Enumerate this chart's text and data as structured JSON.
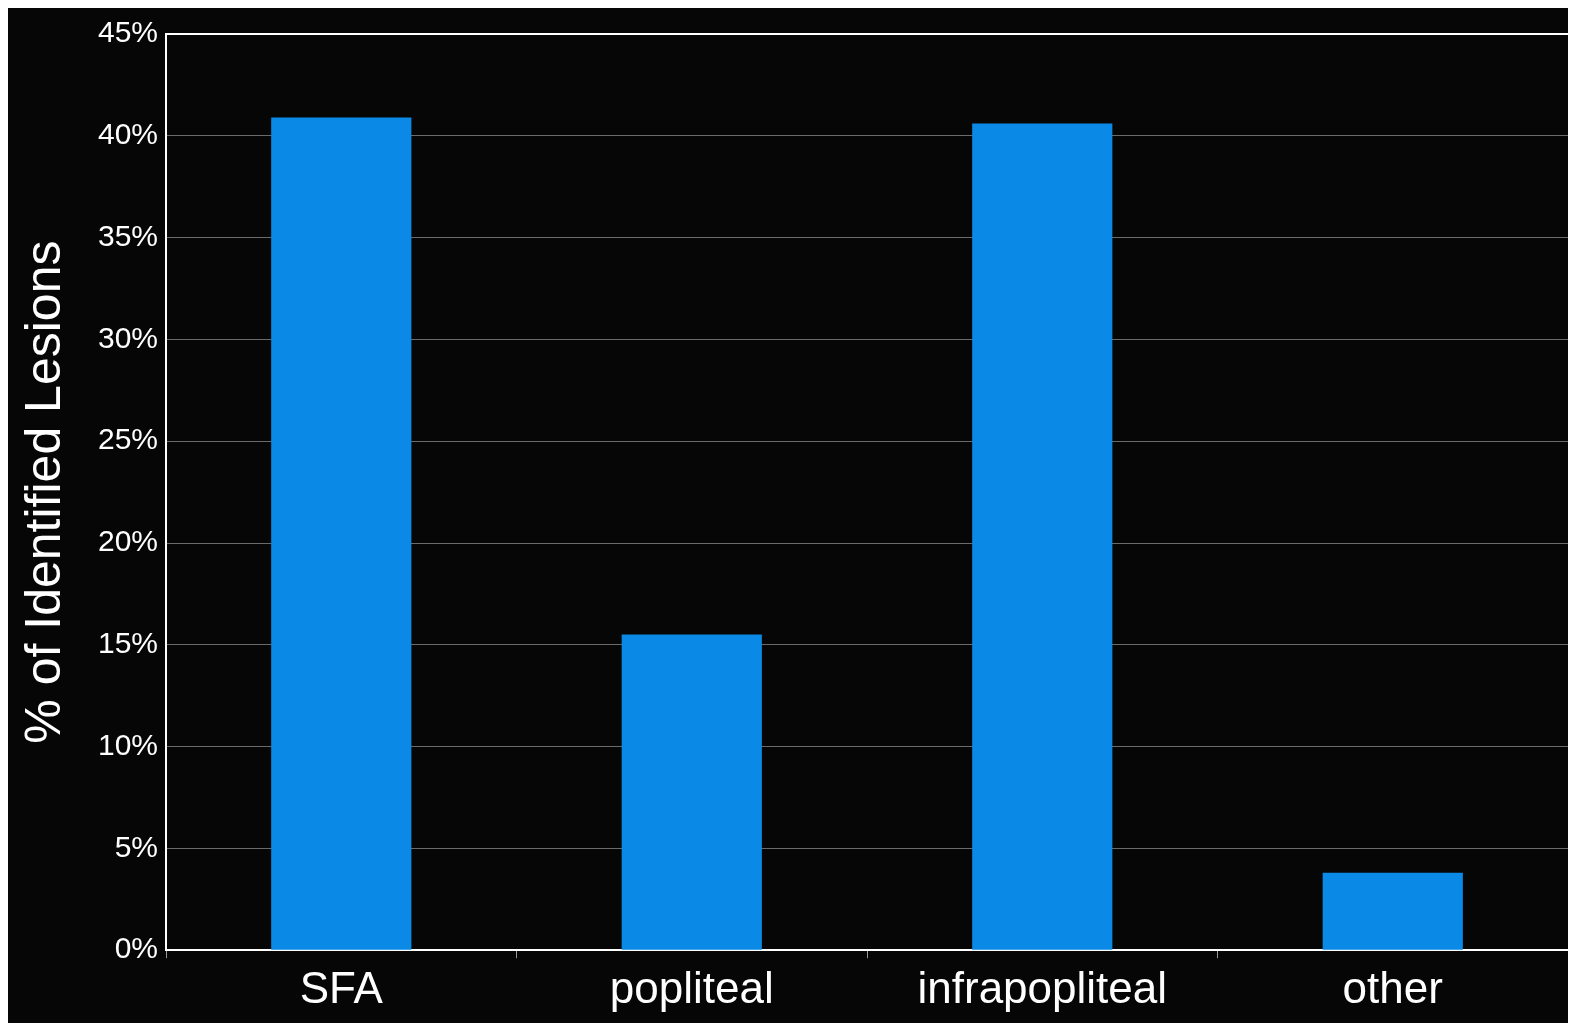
{
  "chart_data": {
    "type": "bar",
    "ylabel": "% of Identified Lesions",
    "categories": [
      "SFA",
      "popliteal",
      "infrapopliteal",
      "other"
    ],
    "values": [
      40.9,
      15.5,
      40.6,
      3.8
    ],
    "color": "#0a8ae6",
    "ylim": [
      0,
      45
    ],
    "yticks": [
      {
        "value": 0,
        "label": "0%"
      },
      {
        "value": 5,
        "label": "5%"
      },
      {
        "value": 10,
        "label": "10%"
      },
      {
        "value": 15,
        "label": "15%"
      },
      {
        "value": 20,
        "label": "20%"
      },
      {
        "value": 25,
        "label": "25%"
      },
      {
        "value": 30,
        "label": "30%"
      },
      {
        "value": 35,
        "label": "35%"
      },
      {
        "value": 40,
        "label": "40%"
      },
      {
        "value": 45,
        "label": "45%"
      }
    ],
    "grid": "y",
    "legend": false
  }
}
